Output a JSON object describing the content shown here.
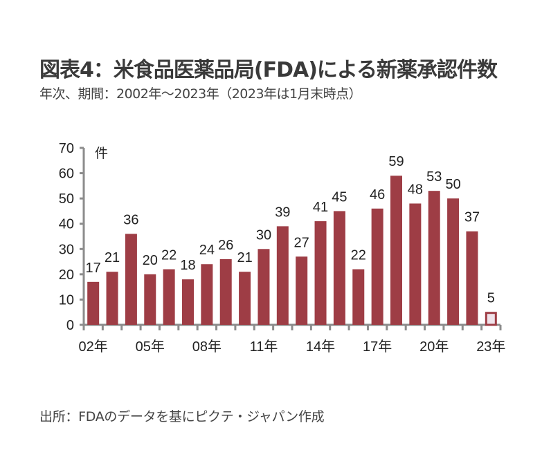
{
  "title": "図表4：米食品医薬品局(FDA)による新薬承認件数",
  "subtitle": "年次、期間：2002年～2023年（2023年は1月末時点）",
  "source": "出所：FDAのデータを基にピクテ・ジャパン作成",
  "colors": {
    "bar": "#9e3d45",
    "partial_fill": "#efe3ea",
    "axis": "#8c8c8c",
    "text": "#222222"
  },
  "chart_data": {
    "type": "bar",
    "title": "図表4：米食品医薬品局(FDA)による新薬承認件数",
    "subtitle": "年次、期間：2002年～2023年（2023年は1月末時点）",
    "xlabel": "",
    "ylabel": "件",
    "ylim": [
      0,
      70
    ],
    "yticks": [
      "0",
      "10",
      "20",
      "30",
      "40",
      "50",
      "60",
      "70"
    ],
    "categories": [
      "02年",
      "03年",
      "04年",
      "05年",
      "06年",
      "07年",
      "08年",
      "09年",
      "10年",
      "11年",
      "12年",
      "13年",
      "14年",
      "15年",
      "16年",
      "17年",
      "18年",
      "19年",
      "20年",
      "21年",
      "22年",
      "23年"
    ],
    "x_tick_labels": [
      {
        "index": 0,
        "label": "02年"
      },
      {
        "index": 3,
        "label": "05年"
      },
      {
        "index": 6,
        "label": "08年"
      },
      {
        "index": 9,
        "label": "11年"
      },
      {
        "index": 12,
        "label": "14年"
      },
      {
        "index": 15,
        "label": "17年"
      },
      {
        "index": 18,
        "label": "20年"
      },
      {
        "index": 21,
        "label": "23年"
      }
    ],
    "values": [
      17,
      21,
      36,
      20,
      22,
      18,
      24,
      26,
      21,
      30,
      39,
      27,
      41,
      45,
      22,
      46,
      59,
      48,
      53,
      50,
      37,
      5
    ],
    "data_labels": [
      "17",
      "21",
      "36",
      "20",
      "22",
      "18",
      "24",
      "26",
      "21",
      "30",
      "39",
      "27",
      "41",
      "45",
      "22",
      "46",
      "59",
      "48",
      "53",
      "50",
      "37",
      "5"
    ],
    "partial_index": 21,
    "grid": false,
    "legend": "none"
  }
}
